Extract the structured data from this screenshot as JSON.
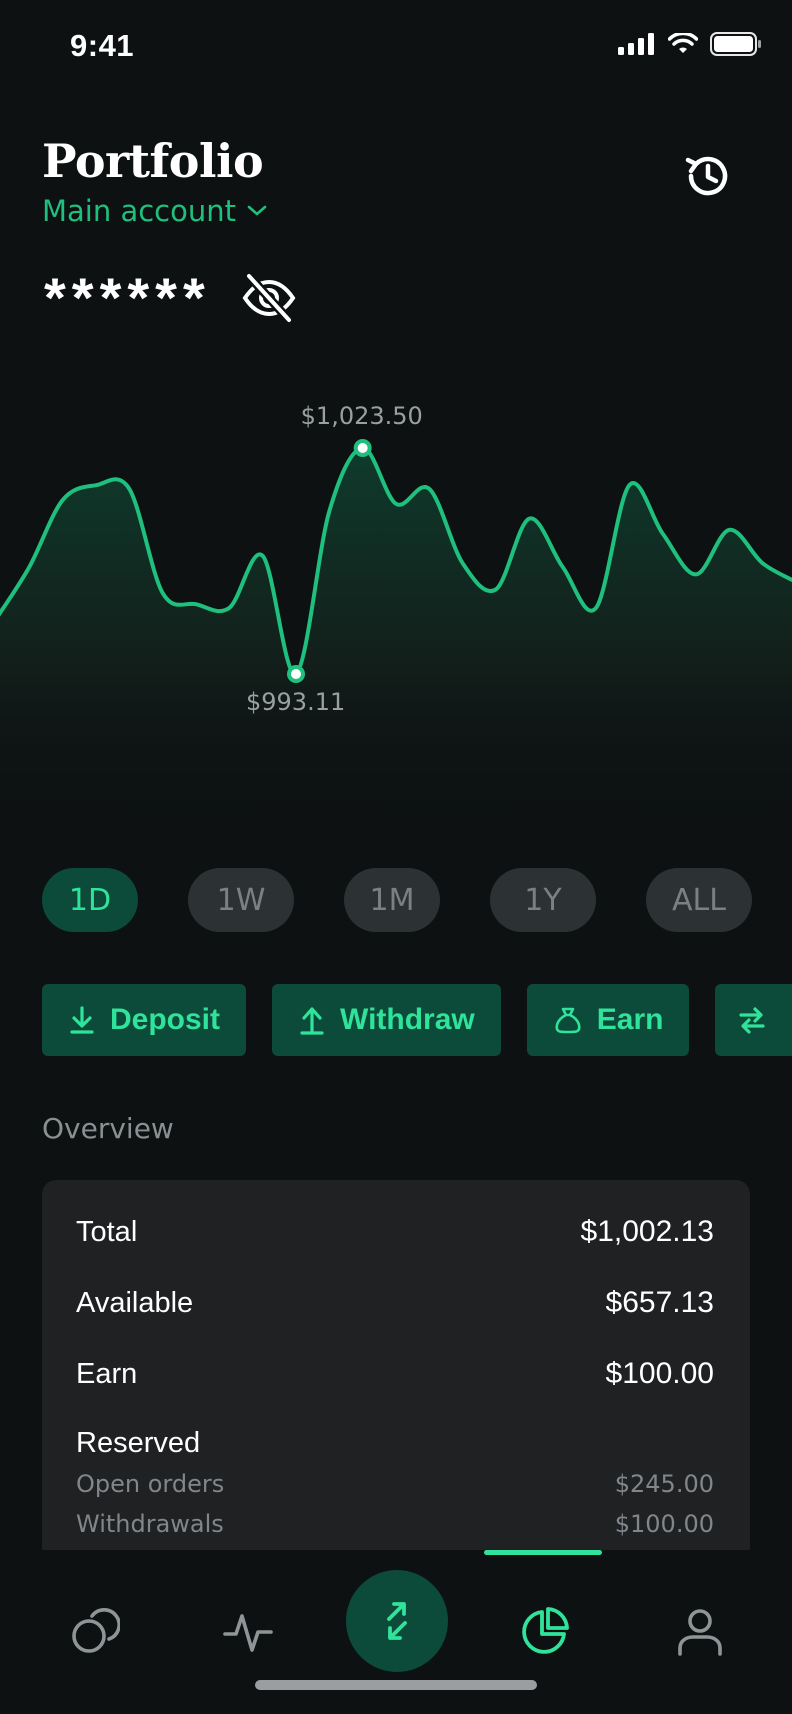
{
  "status_bar": {
    "time": "9:41"
  },
  "header": {
    "title": "Portfolio",
    "account_label": "Main account"
  },
  "balance": {
    "masked": "******"
  },
  "chart_data": {
    "type": "area",
    "x": [
      0,
      1,
      2,
      3,
      4,
      5,
      6,
      7,
      8,
      9,
      10,
      11,
      12,
      13,
      14,
      15,
      16,
      17,
      18,
      19,
      20,
      21,
      22,
      23,
      24
    ],
    "values": [
      1000.5,
      1007.5,
      1016.5,
      1018.5,
      1018.0,
      1004.0,
      1002.5,
      1002.0,
      1009.0,
      993.11,
      1015.0,
      1023.5,
      1016.0,
      1018.0,
      1008.0,
      1004.5,
      1014.0,
      1007.5,
      1002.0,
      1018.5,
      1012.0,
      1006.5,
      1012.5,
      1008.0,
      1005.5
    ],
    "high_label": "$1,023.50",
    "low_label": "$993.11",
    "title": "",
    "xlabel": "",
    "ylabel": "",
    "grid": false,
    "series_color": "#1fbf7e"
  },
  "ranges": [
    {
      "label": "1D",
      "active": true
    },
    {
      "label": "1W",
      "active": false
    },
    {
      "label": "1M",
      "active": false
    },
    {
      "label": "1Y",
      "active": false
    },
    {
      "label": "ALL",
      "active": false
    }
  ],
  "actions": {
    "deposit": "Deposit",
    "withdraw": "Withdraw",
    "earn": "Earn"
  },
  "overview": {
    "label": "Overview",
    "total_label": "Total",
    "total_value": "$1,002.13",
    "available_label": "Available",
    "available_value": "$657.13",
    "earn_label": "Earn",
    "earn_value": "$100.00",
    "reserved_label": "Reserved",
    "open_orders_label": "Open orders",
    "open_orders_value": "$245.00",
    "withdrawals_label": "Withdrawals",
    "withdrawals_value": "$100.00"
  },
  "nav": {
    "items": [
      "coins-icon",
      "activity-icon",
      "exchange-icon",
      "portfolio-icon",
      "profile-icon"
    ],
    "active": "portfolio-icon"
  },
  "colors": {
    "accent": "#2fe39a",
    "accent_dark": "#0c4a3a",
    "background": "#0d1112",
    "card": "#1f2123"
  }
}
